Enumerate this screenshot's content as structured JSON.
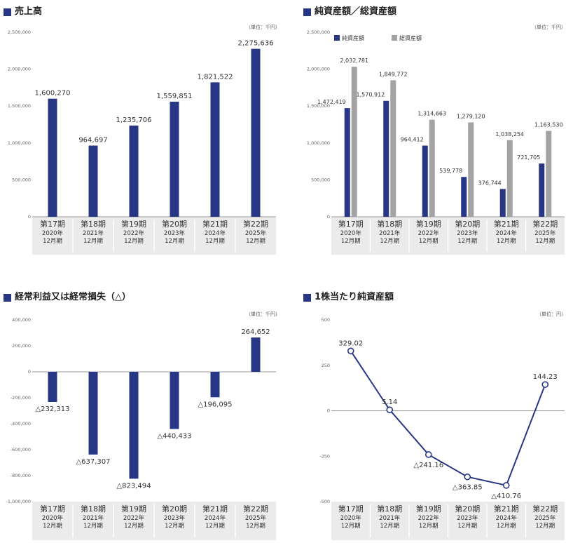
{
  "colors": {
    "navy": "#283785",
    "gray": "#a3a3a3",
    "band": "#ebebeb",
    "axis": "#999999"
  },
  "chart_data": [
    {
      "type": "bar",
      "title": "売上高",
      "unit_note": "（単位：千円）",
      "categories": [
        "第17期",
        "第18期",
        "第19期",
        "第20期",
        "第21期",
        "第22期"
      ],
      "sub_year": [
        "2020年",
        "2021年",
        "2022年",
        "2023年",
        "2024年",
        "2025年"
      ],
      "sub_month": [
        "12月期",
        "12月期",
        "12月期",
        "12月期",
        "12月期",
        "12月期"
      ],
      "yticks": [
        "0",
        "500,000",
        "1,000,000",
        "1,500,000",
        "2,000,000",
        "2,500,000"
      ],
      "ylim": [
        0,
        2500000
      ],
      "series": [
        {
          "values": [
            1600270,
            964697,
            1235706,
            1559851,
            1821522,
            2275636
          ]
        }
      ],
      "value_labels": [
        "1,600,270",
        "964,697",
        "1,235,706",
        "1,559,851",
        "1,821,522",
        "2,275,636"
      ]
    },
    {
      "type": "bar",
      "title": "純資産額／総資産額",
      "unit_note": "（単位：千円）",
      "categories": [
        "第17期",
        "第18期",
        "第19期",
        "第20期",
        "第21期",
        "第22期"
      ],
      "sub_year": [
        "2020年",
        "2021年",
        "2022年",
        "2023年",
        "2024年",
        "2025年"
      ],
      "sub_month": [
        "12月期",
        "12月期",
        "12月期",
        "12月期",
        "12月期",
        "12月期"
      ],
      "yticks": [
        "0",
        "500,000",
        "1,000,000",
        "1,500,000",
        "2,000,000",
        "2,500,000"
      ],
      "ylim": [
        0,
        2500000
      ],
      "legend_position": "top-left",
      "series": [
        {
          "name": "純資産額",
          "values": [
            1472419,
            1570912,
            964412,
            539778,
            376744,
            721705
          ],
          "value_labels": [
            "1,472,419",
            "1,570,912",
            "964,412",
            "539,778",
            "376,744",
            "721,705"
          ]
        },
        {
          "name": "総資産額",
          "values": [
            2032781,
            1849772,
            1314663,
            1279120,
            1038254,
            1163530
          ],
          "value_labels": [
            "2,032,781",
            "1,849,772",
            "1,314,663",
            "1,279,120",
            "1,038,254",
            "1,163,530"
          ]
        }
      ]
    },
    {
      "type": "bar",
      "title": "経常利益又は経常損失（△）",
      "unit_note": "（単位：千円）",
      "categories": [
        "第17期",
        "第18期",
        "第19期",
        "第20期",
        "第21期",
        "第22期"
      ],
      "sub_year": [
        "2020年",
        "2021年",
        "2022年",
        "2023年",
        "2024年",
        "2025年"
      ],
      "sub_month": [
        "12月期",
        "12月期",
        "12月期",
        "12月期",
        "12月期",
        "12月期"
      ],
      "yticks": [
        "400,000",
        "200,000",
        "0",
        "-200,000",
        "-400,000",
        "-600,000",
        "-800,000",
        "-1,000,000"
      ],
      "ylim": [
        -1000000,
        400000
      ],
      "series": [
        {
          "values": [
            -232313,
            -637307,
            -823494,
            -440433,
            -196095,
            264652
          ]
        }
      ],
      "value_labels": [
        "△232,313",
        "△637,307",
        "△823,494",
        "△440,433",
        "△196,095",
        "264,652"
      ]
    },
    {
      "type": "line",
      "title": "1株当たり純資産額",
      "unit_note": "（単位：円）",
      "categories": [
        "第17期",
        "第18期",
        "第19期",
        "第20期",
        "第21期",
        "第22期"
      ],
      "sub_year": [
        "2020年",
        "2021年",
        "2022年",
        "2023年",
        "2024年",
        "2025年"
      ],
      "sub_month": [
        "12月期",
        "12月期",
        "12月期",
        "12月期",
        "12月期",
        "12月期"
      ],
      "yticks": [
        "500",
        "250",
        "0",
        "-250",
        "-500"
      ],
      "ylim": [
        -500,
        500
      ],
      "series": [
        {
          "values": [
            329.02,
            5.14,
            -241.16,
            -363.85,
            -410.76,
            144.23
          ]
        }
      ],
      "value_labels": [
        "329.02",
        "5.14",
        "△241.16",
        "△363.85",
        "△410.76",
        "144.23"
      ]
    }
  ]
}
